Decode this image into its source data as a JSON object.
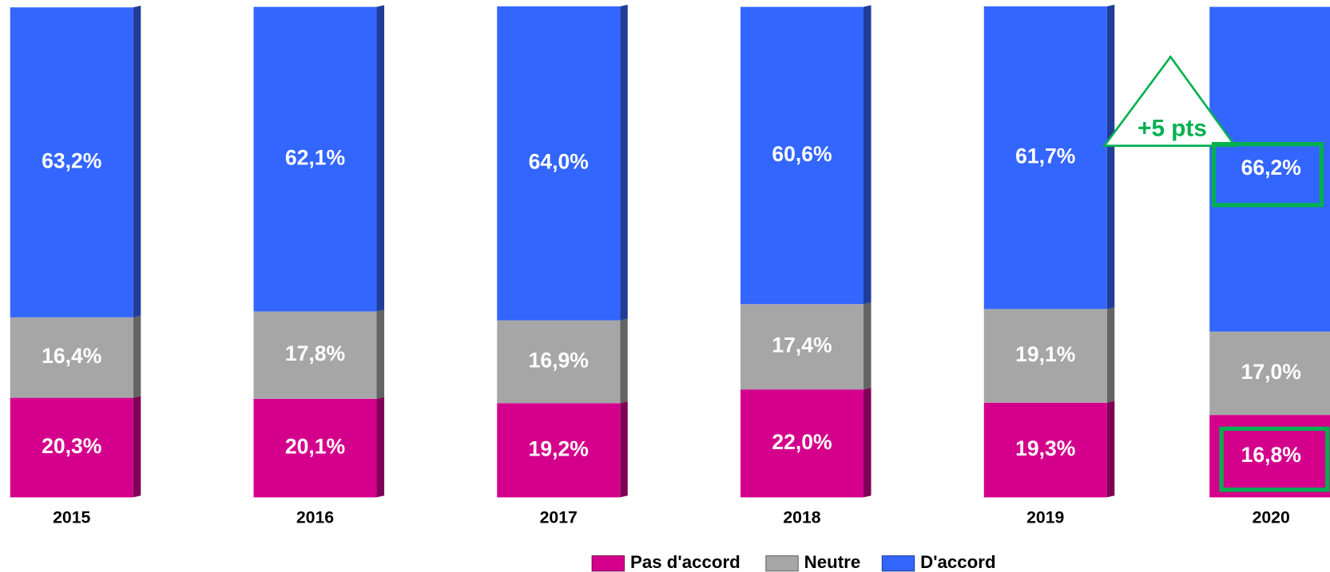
{
  "chart_data": {
    "type": "stacked_bar",
    "categories": [
      "2015",
      "2016",
      "2017",
      "2018",
      "2019",
      "2020"
    ],
    "ylim": [
      0,
      100
    ],
    "series": [
      {
        "name": "Pas d'accord",
        "color": "#d4008c",
        "values": [
          20.3,
          20.1,
          19.2,
          22.0,
          19.3,
          16.8
        ],
        "value_labels": [
          "20,3%",
          "20,1%",
          "19,2%",
          "22,0%",
          "19,3%",
          "16,8%"
        ]
      },
      {
        "name": "Neutre",
        "color": "#a6a6a6",
        "values": [
          16.4,
          17.8,
          16.9,
          17.4,
          19.1,
          17.0
        ],
        "value_labels": [
          "16,4%",
          "17,8%",
          "16,9%",
          "17,4%",
          "19,1%",
          "17,0%"
        ]
      },
      {
        "name": "D'accord",
        "color": "#3366ff",
        "values": [
          63.2,
          62.1,
          64.0,
          60.6,
          61.7,
          66.2
        ],
        "value_labels": [
          "63,2%",
          "62,1%",
          "64,0%",
          "60,6%",
          "61,7%",
          "66,2%"
        ]
      }
    ],
    "annotation": "+5 pts"
  }
}
